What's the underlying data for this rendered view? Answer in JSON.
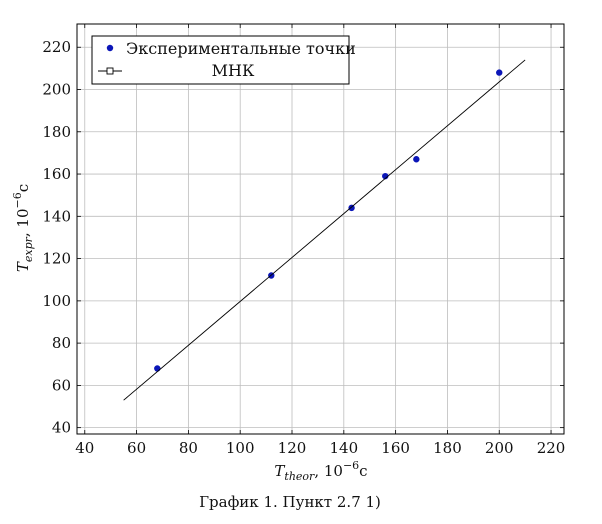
{
  "chart_data": {
    "type": "scatter",
    "xlabel_main": "T",
    "xlabel_sub": "theor",
    "xlabel_rest": ", 10",
    "xlabel_exp": "−6",
    "xlabel_unit": "с",
    "ylabel_main": "T",
    "ylabel_sub": "expr",
    "ylabel_rest": ", 10",
    "ylabel_exp": "−6",
    "ylabel_unit": "с",
    "xlim": [
      37,
      225
    ],
    "ylim": [
      37,
      231
    ],
    "xticks": [
      40,
      60,
      80,
      100,
      120,
      140,
      160,
      180,
      200,
      220
    ],
    "yticks": [
      40,
      60,
      80,
      100,
      120,
      140,
      160,
      180,
      200,
      220
    ],
    "grid": true,
    "legend_position": "top-left",
    "series": [
      {
        "name": "Экспериментальные точки",
        "kind": "scatter",
        "color": "#0b16b8",
        "points": [
          [
            68,
            68
          ],
          [
            112,
            112
          ],
          [
            143,
            144
          ],
          [
            156,
            159
          ],
          [
            168,
            167
          ],
          [
            200,
            208
          ]
        ]
      },
      {
        "name": "МНК",
        "kind": "line",
        "color": "#000000",
        "points": [
          [
            55,
            53
          ],
          [
            210,
            214
          ]
        ]
      }
    ]
  },
  "caption": "График 1. Пункт 2.7 1)"
}
